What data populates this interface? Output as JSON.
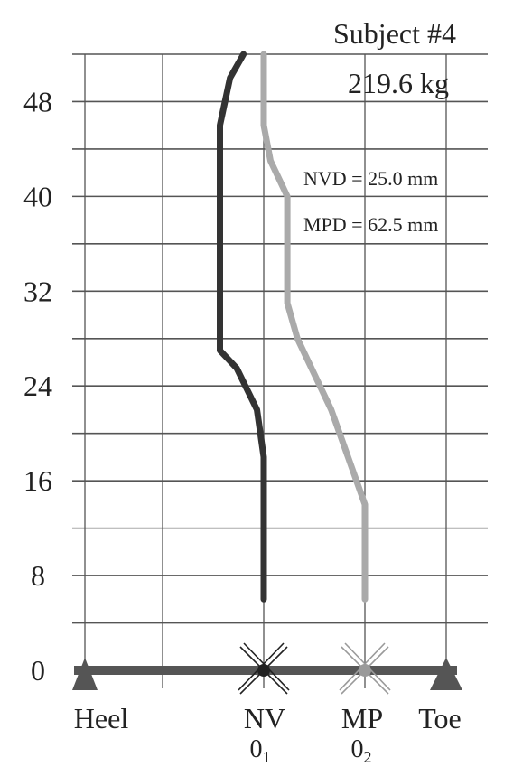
{
  "chart_data": {
    "type": "line",
    "title": "Subject #4",
    "subtitle": "219.6 kg",
    "annotations": [
      "NVD = 25.0 mm",
      "MPD = 62.5 mm"
    ],
    "ylim": [
      0,
      52
    ],
    "y_ticks": [
      {
        "value": 0,
        "label": "0"
      },
      {
        "value": 8,
        "label": "8"
      },
      {
        "value": 16,
        "label": "16"
      },
      {
        "value": 24,
        "label": "24"
      },
      {
        "value": 32,
        "label": "32"
      },
      {
        "value": 40,
        "label": "40"
      },
      {
        "value": 48,
        "label": "48"
      }
    ],
    "x_labels": [
      {
        "key": "heel",
        "label": "Heel"
      },
      {
        "key": "nv",
        "label": "NV"
      },
      {
        "key": "mp",
        "label": "MP"
      },
      {
        "key": "toe",
        "label": "Toe"
      }
    ],
    "origin_labels": [
      {
        "key": "nv",
        "base": "0",
        "sub": "1"
      },
      {
        "key": "mp",
        "base": "0",
        "sub": "2"
      }
    ],
    "grid": true,
    "series": [
      {
        "color": "#333333",
        "points": [
          [
            0,
            6
          ],
          [
            0,
            18
          ],
          [
            -2,
            22
          ],
          [
            -8,
            25.5
          ],
          [
            -13,
            27
          ],
          [
            -13,
            46
          ],
          [
            -10,
            50
          ],
          [
            -6,
            52
          ]
        ]
      },
      {
        "color": "#aaaaaa",
        "points": [
          [
            30,
            6
          ],
          [
            30,
            14
          ],
          [
            20,
            22
          ],
          [
            10,
            28
          ],
          [
            7,
            31
          ],
          [
            7,
            40
          ],
          [
            2,
            43
          ],
          [
            0,
            46
          ],
          [
            0,
            52
          ]
        ]
      }
    ],
    "colors": {
      "grid": "#555555",
      "baseline": "#555555",
      "marker": "#555555"
    }
  }
}
